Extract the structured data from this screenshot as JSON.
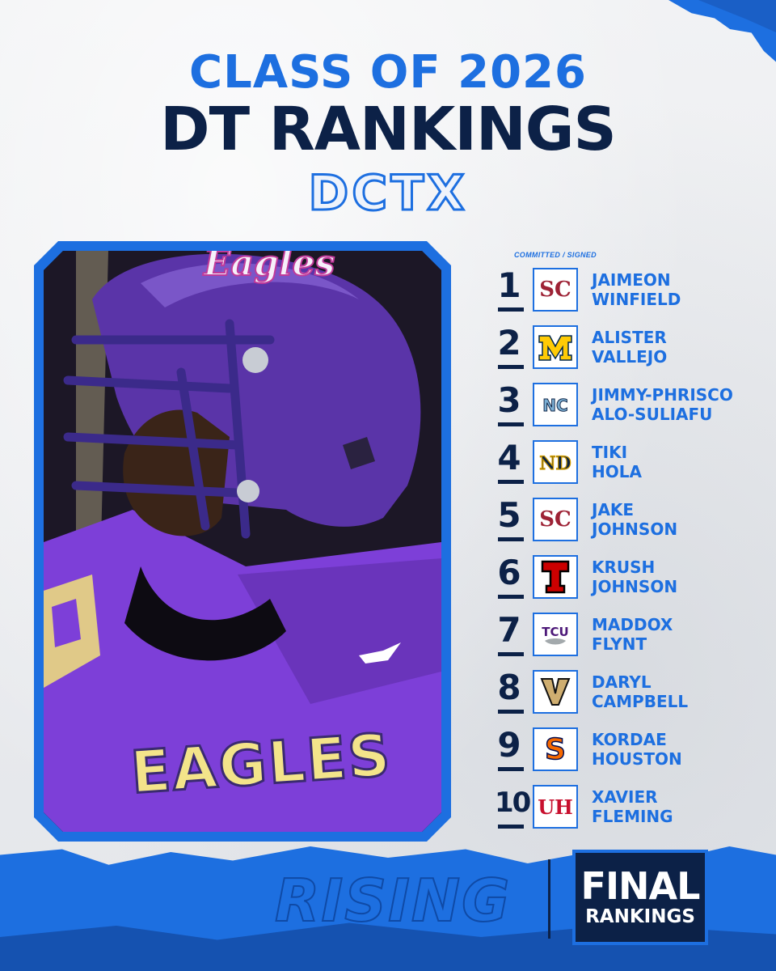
{
  "header": {
    "title_line1": "CLASS OF 2026",
    "title_line2": "DT RANKINGS",
    "brand": "DCTX"
  },
  "colors": {
    "accent": "#1d6fe0",
    "navy": "#0c2147",
    "background": "#eceef1"
  },
  "photo": {
    "helmet_text": "Eagles",
    "jersey_text": "EAGLES"
  },
  "list": {
    "committed_label": "COMMITTED / SIGNED",
    "players": [
      {
        "rank": "1",
        "first": "JAIMEON",
        "last": "WINFIELD",
        "logo_icon": "usc-logo-icon",
        "logo_text": "SC"
      },
      {
        "rank": "2",
        "first": "ALISTER",
        "last": "VALLEJO",
        "logo_icon": "michigan-logo-icon",
        "logo_text": "M"
      },
      {
        "rank": "3",
        "first": "JIMMY-PHRISCO",
        "last": "ALO-SULIAFU",
        "logo_icon": "north-carolina-logo-icon",
        "logo_text": "NC"
      },
      {
        "rank": "4",
        "first": "TIKI",
        "last": "HOLA",
        "logo_icon": "notre-dame-logo-icon",
        "logo_text": "ND"
      },
      {
        "rank": "5",
        "first": "JAKE",
        "last": "JOHNSON",
        "logo_icon": "usc-logo-icon",
        "logo_text": "SC"
      },
      {
        "rank": "6",
        "first": "KRUSH",
        "last": "JOHNSON",
        "logo_icon": "texas-tech-logo-icon",
        "logo_text": "T"
      },
      {
        "rank": "7",
        "first": "MADDOX",
        "last": "FLYNT",
        "logo_icon": "tcu-logo-icon",
        "logo_text": "TCU"
      },
      {
        "rank": "8",
        "first": "DARYL",
        "last": "CAMPBELL",
        "logo_icon": "vanderbilt-logo-icon",
        "logo_text": "V"
      },
      {
        "rank": "9",
        "first": "KORDAE",
        "last": "HOUSTON",
        "logo_icon": "syracuse-logo-icon",
        "logo_text": "S"
      },
      {
        "rank": "10",
        "first": "XAVIER",
        "last": "FLEMING",
        "logo_icon": "houston-logo-icon",
        "logo_text": "UH"
      }
    ]
  },
  "footer": {
    "rising": "RISING",
    "badge_line1": "FINAL",
    "badge_line2": "RANKINGS"
  }
}
